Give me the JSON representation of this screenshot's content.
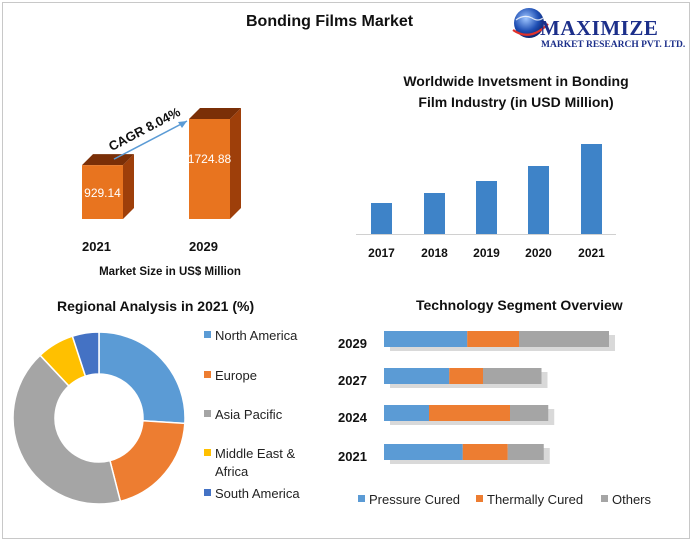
{
  "header": {
    "title": "Bonding Films Market",
    "logo_name": "MAXIMIZE",
    "logo_tagline": "MARKET RESEARCH PVT. LTD."
  },
  "colors": {
    "orange_bar": "#E8741F",
    "orange_dark": "#9E3F0A",
    "blue_bar": "#3E83C8",
    "donut_blue": "#5B9BD5",
    "donut_orange": "#ED7D31",
    "donut_gray": "#A5A5A5",
    "donut_yellow": "#FFC000",
    "donut_navy": "#4472C4"
  },
  "chart_data": [
    {
      "type": "bar",
      "categories": [
        "2021",
        "2029"
      ],
      "values": [
        929.14,
        1724.88
      ],
      "value_labels": [
        "929.14",
        "1724.88"
      ],
      "annotation": "CAGR 8.04%",
      "xlabel": "Market Size in US$ Million",
      "style": "3d-box"
    },
    {
      "type": "bar",
      "title_lines": [
        "Worldwide Invetsment in Bonding",
        "Film Industry (in USD Million)"
      ],
      "categories": [
        "2017",
        "2018",
        "2019",
        "2020",
        "2021"
      ],
      "values": [
        31,
        41,
        53,
        68,
        90
      ],
      "ylim": [
        0,
        100
      ]
    },
    {
      "type": "pie",
      "variant": "donut",
      "title": "Regional Analysis in 2021 (%)",
      "labels": [
        "North America",
        "Europe",
        "Asia Pacific",
        "Middle East & Africa",
        "South America"
      ],
      "label_lines": [
        [
          "North America"
        ],
        [
          "Europe"
        ],
        [
          "Asia Pacific"
        ],
        [
          "Middle East &",
          "Africa"
        ],
        [
          "South America"
        ]
      ],
      "values": [
        26,
        20,
        42,
        7,
        5
      ],
      "legend": "right"
    },
    {
      "type": "bar",
      "orientation": "horizontal",
      "stacked": true,
      "title": "Technology Segment Overview",
      "categories": [
        "2029",
        "2027",
        "2024",
        "2021"
      ],
      "series": [
        {
          "name": "Pressure Cured",
          "values": [
            37,
            29,
            20,
            35
          ]
        },
        {
          "name": "Thermally Cured",
          "values": [
            23,
            15,
            36,
            20
          ]
        },
        {
          "name": "Others",
          "values": [
            40,
            26,
            17,
            16
          ]
        }
      ],
      "legend": "bottom"
    }
  ]
}
